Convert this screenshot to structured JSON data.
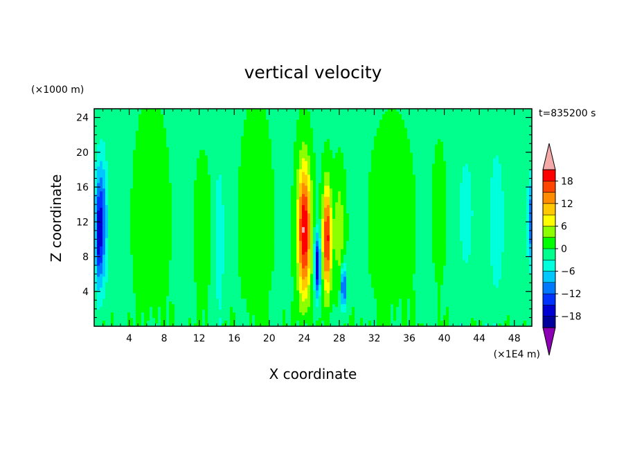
{
  "chart_data": {
    "type": "heatmap",
    "title": "vertical velocity",
    "xlabel": "X coordinate",
    "ylabel": "Z coordinate",
    "x_unit": "(×1E4 m)",
    "y_unit": "(×1000 m)",
    "time_label": "t=835200 s",
    "xlim": [
      0,
      50
    ],
    "ylim": [
      0,
      25
    ],
    "x_ticks": [
      4,
      8,
      12,
      16,
      20,
      24,
      28,
      32,
      36,
      40,
      44,
      48
    ],
    "y_ticks": [
      4,
      8,
      12,
      16,
      20,
      24
    ],
    "x_tick_labels": [
      "4",
      "8",
      "12",
      "16",
      "20",
      "24",
      "28",
      "32",
      "36",
      "40",
      "44",
      "48"
    ],
    "y_tick_labels": [
      "4",
      "8",
      "12",
      "16",
      "20",
      "24"
    ],
    "background_value": -0.5,
    "features": [
      {
        "name": "left-edge-downdraft",
        "x": 0.8,
        "z": 12,
        "sx": 0.7,
        "sz": 7.5,
        "amp": -13
      },
      {
        "name": "left-edge-downdraft-core",
        "x": 0.5,
        "z": 10,
        "sx": 0.35,
        "sz": 5,
        "amp": -7
      },
      {
        "name": "updraft-x6",
        "x": 6.5,
        "z": 12,
        "sx": 2.2,
        "sz": 14,
        "amp": 1.5
      },
      {
        "name": "updraft-x12",
        "x": 12.4,
        "z": 11,
        "sx": 0.8,
        "sz": 7,
        "amp": 3
      },
      {
        "name": "downdraft-x14",
        "x": 14.3,
        "z": 10,
        "sx": 0.6,
        "sz": 9,
        "amp": -5
      },
      {
        "name": "updraft-x18",
        "x": 18.5,
        "z": 12,
        "sx": 2.0,
        "sz": 14,
        "amp": 1.5
      },
      {
        "name": "updraft-x24",
        "x": 24.0,
        "z": 11,
        "sx": 0.75,
        "sz": 7.5,
        "amp": 22
      },
      {
        "name": "downdraft-x25",
        "x": 25.5,
        "z": 7,
        "sx": 0.35,
        "sz": 3.5,
        "amp": -18
      },
      {
        "name": "updraft-x26",
        "x": 26.6,
        "z": 10,
        "sx": 0.5,
        "sz": 6,
        "amp": 20
      },
      {
        "name": "updraft-x28",
        "x": 28.0,
        "z": 11,
        "sx": 0.6,
        "sz": 6,
        "amp": 6
      },
      {
        "name": "downdraft-x28",
        "x": 28.5,
        "z": 4.5,
        "sx": 0.3,
        "sz": 2.5,
        "amp": -15
      },
      {
        "name": "updraft-x34",
        "x": 34,
        "z": 12,
        "sx": 3.0,
        "sz": 14,
        "amp": 1.2
      },
      {
        "name": "updraft-x40",
        "x": 39.5,
        "z": 13,
        "sx": 1.0,
        "sz": 10,
        "amp": 1.0
      },
      {
        "name": "downdraft-x43",
        "x": 42.5,
        "z": 13,
        "sx": 1.2,
        "sz": 10,
        "amp": -3.5
      },
      {
        "name": "downdraft-x46",
        "x": 46,
        "z": 12,
        "sx": 1.0,
        "sz": 10,
        "amp": -4.5
      },
      {
        "name": "right-edge-downdraft",
        "x": 50,
        "z": 12,
        "sx": 0.5,
        "sz": 5,
        "amp": -12
      }
    ],
    "colorbar": {
      "levels": [
        -21,
        -18,
        -15,
        -12,
        -9,
        -6,
        -3,
        0,
        3,
        6,
        9,
        12,
        15,
        18,
        21
      ],
      "tick_labels": [
        "18",
        "12",
        "6",
        "0",
        "−6",
        "−12",
        "−18"
      ],
      "tick_values": [
        18,
        12,
        6,
        0,
        -6,
        -12,
        -18
      ],
      "colors": [
        "#3d0096",
        "#00009b",
        "#0000d2",
        "#0032ff",
        "#0078ff",
        "#00c8ff",
        "#00ffdc",
        "#00ff8c",
        "#00ff00",
        "#8cff00",
        "#ffff00",
        "#ffc800",
        "#ff8c00",
        "#ff4600",
        "#ff0000",
        "#dc0000"
      ],
      "under_color": "#8c00b4",
      "over_color": "#f5aaaa"
    }
  }
}
